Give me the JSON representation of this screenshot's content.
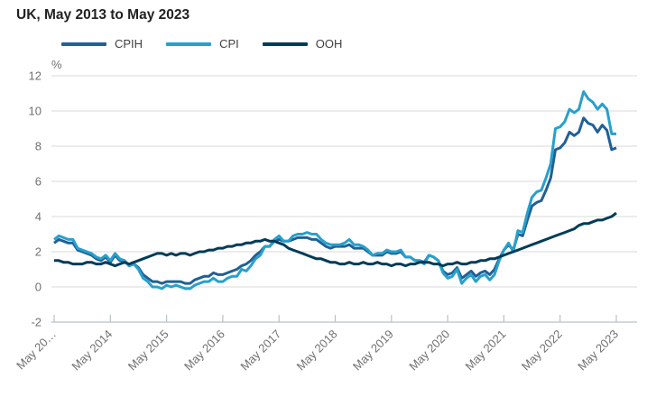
{
  "title": "UK, May 2013 to May 2023",
  "colors": {
    "cpih": "#206095",
    "cpi": "#27A0CC",
    "ooh": "#003C57",
    "grid": "#d9d9d9",
    "axis": "#b7c2ca",
    "muted_text": "#707071",
    "title_text": "#222222"
  },
  "chart_data": {
    "type": "line",
    "title": "UK, May 2013 to May 2023",
    "frequency": "monthly",
    "x_start": "May 2013",
    "x_end": "May 2023",
    "ylabel": "%",
    "ylim": [
      -2,
      12
    ],
    "grid": "horizontal",
    "legend_position": "top",
    "y_ticks": [
      12,
      10,
      8,
      6,
      4,
      2,
      0,
      -2
    ],
    "x_tick_labels": [
      "May 20…",
      "May 2014",
      "May 2015",
      "May 2016",
      "May 2017",
      "May 2018",
      "May 2019",
      "May 2020",
      "May 2021",
      "May 2022",
      "May 2023"
    ],
    "x_tick_month_indices": [
      0,
      12,
      24,
      36,
      48,
      60,
      72,
      84,
      96,
      108,
      120
    ],
    "series": [
      {
        "name": "CPIH",
        "color": "#206095",
        "values": [
          2.5,
          2.7,
          2.6,
          2.5,
          2.5,
          2.1,
          2.0,
          1.9,
          1.8,
          1.6,
          1.5,
          1.7,
          1.4,
          1.8,
          1.5,
          1.5,
          1.2,
          1.3,
          1.1,
          0.7,
          0.5,
          0.3,
          0.3,
          0.2,
          0.3,
          0.3,
          0.3,
          0.3,
          0.2,
          0.2,
          0.4,
          0.5,
          0.6,
          0.6,
          0.8,
          0.7,
          0.7,
          0.8,
          0.9,
          1.0,
          1.2,
          1.3,
          1.5,
          1.8,
          2.0,
          2.3,
          2.3,
          2.6,
          2.7,
          2.6,
          2.6,
          2.7,
          2.8,
          2.8,
          2.8,
          2.7,
          2.7,
          2.5,
          2.3,
          2.2,
          2.3,
          2.3,
          2.3,
          2.4,
          2.2,
          2.2,
          2.2,
          2.0,
          1.8,
          1.8,
          1.8,
          2.0,
          1.9,
          1.9,
          2.0,
          1.7,
          1.7,
          1.5,
          1.5,
          1.4,
          1.8,
          1.7,
          1.5,
          0.9,
          0.7,
          0.8,
          1.1,
          0.5,
          0.7,
          0.9,
          0.6,
          0.8,
          0.9,
          0.7,
          1.0,
          1.6,
          2.1,
          2.4,
          2.1,
          3.0,
          2.9,
          3.8,
          4.6,
          4.8,
          4.9,
          5.5,
          6.2,
          7.8,
          7.9,
          8.2,
          8.8,
          8.6,
          8.8,
          9.6,
          9.3,
          9.2,
          8.8,
          9.2,
          8.9,
          7.8,
          7.9
        ]
      },
      {
        "name": "CPI",
        "color": "#27A0CC",
        "values": [
          2.7,
          2.9,
          2.8,
          2.7,
          2.7,
          2.2,
          2.1,
          2.0,
          1.9,
          1.7,
          1.6,
          1.8,
          1.5,
          1.9,
          1.6,
          1.5,
          1.2,
          1.3,
          1.0,
          0.5,
          0.3,
          0.0,
          0.0,
          -0.1,
          0.1,
          0.0,
          0.1,
          0.0,
          -0.1,
          -0.1,
          0.1,
          0.2,
          0.3,
          0.3,
          0.5,
          0.3,
          0.3,
          0.5,
          0.6,
          0.6,
          1.0,
          0.9,
          1.2,
          1.6,
          1.8,
          2.3,
          2.3,
          2.7,
          2.9,
          2.6,
          2.6,
          2.9,
          3.0,
          3.0,
          3.1,
          3.0,
          3.0,
          2.7,
          2.5,
          2.4,
          2.4,
          2.4,
          2.5,
          2.7,
          2.4,
          2.4,
          2.3,
          2.1,
          1.8,
          1.9,
          1.9,
          2.1,
          2.0,
          2.0,
          2.1,
          1.7,
          1.7,
          1.5,
          1.5,
          1.3,
          1.8,
          1.7,
          1.5,
          0.8,
          0.5,
          0.6,
          1.0,
          0.2,
          0.5,
          0.7,
          0.3,
          0.6,
          0.7,
          0.4,
          0.7,
          1.5,
          2.1,
          2.5,
          2.0,
          3.2,
          3.1,
          4.2,
          5.1,
          5.4,
          5.5,
          6.2,
          7.0,
          9.0,
          9.1,
          9.4,
          10.1,
          9.9,
          10.1,
          11.1,
          10.7,
          10.5,
          10.1,
          10.4,
          10.1,
          8.7,
          8.7
        ]
      },
      {
        "name": "OOH",
        "color": "#003C57",
        "values": [
          1.5,
          1.5,
          1.4,
          1.4,
          1.3,
          1.3,
          1.3,
          1.4,
          1.4,
          1.3,
          1.3,
          1.4,
          1.3,
          1.2,
          1.3,
          1.4,
          1.3,
          1.4,
          1.5,
          1.6,
          1.7,
          1.8,
          1.9,
          1.9,
          1.8,
          1.9,
          1.8,
          1.9,
          1.9,
          1.8,
          1.9,
          2.0,
          2.0,
          2.1,
          2.1,
          2.2,
          2.2,
          2.3,
          2.3,
          2.4,
          2.4,
          2.5,
          2.5,
          2.6,
          2.6,
          2.7,
          2.6,
          2.6,
          2.5,
          2.4,
          2.2,
          2.1,
          2.0,
          1.9,
          1.8,
          1.7,
          1.6,
          1.6,
          1.5,
          1.4,
          1.4,
          1.3,
          1.3,
          1.4,
          1.3,
          1.3,
          1.4,
          1.3,
          1.3,
          1.4,
          1.3,
          1.3,
          1.2,
          1.3,
          1.3,
          1.2,
          1.3,
          1.3,
          1.4,
          1.4,
          1.4,
          1.3,
          1.3,
          1.2,
          1.3,
          1.3,
          1.4,
          1.3,
          1.3,
          1.4,
          1.4,
          1.5,
          1.5,
          1.6,
          1.6,
          1.7,
          1.8,
          1.9,
          2.0,
          2.1,
          2.2,
          2.3,
          2.4,
          2.5,
          2.6,
          2.7,
          2.8,
          2.9,
          3.0,
          3.1,
          3.2,
          3.3,
          3.5,
          3.6,
          3.6,
          3.7,
          3.8,
          3.8,
          3.9,
          4.0,
          4.2
        ]
      }
    ]
  }
}
